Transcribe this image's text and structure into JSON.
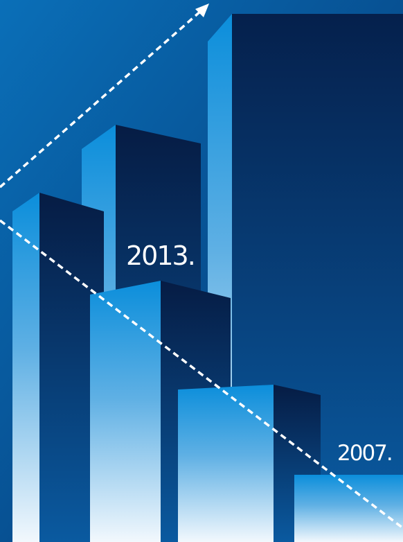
{
  "labels": {
    "upper": "2013.",
    "lower": "2007."
  }
}
